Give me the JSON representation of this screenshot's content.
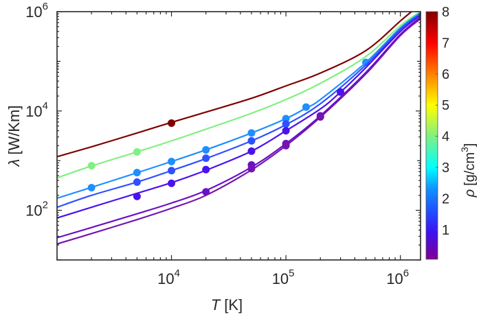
{
  "chart_data": {
    "type": "line",
    "title": "",
    "xlabel": "T [K]",
    "xlabel_var": "T",
    "xlabel_unit": "[K]",
    "ylabel": "λ [W/Km]",
    "ylabel_var": "λ",
    "ylabel_unit": "[W/Km]",
    "xscale": "log",
    "yscale": "log",
    "xlim": [
      1000,
      1500000
    ],
    "ylim": [
      10,
      1000000
    ],
    "x_ticks": [
      {
        "value": 10000,
        "base": "10",
        "exp": "4"
      },
      {
        "value": 100000,
        "base": "10",
        "exp": "5"
      },
      {
        "value": 1000000,
        "base": "10",
        "exp": "6"
      }
    ],
    "y_ticks": [
      {
        "value": 100,
        "base": "10",
        "exp": "2"
      },
      {
        "value": 10000,
        "base": "10",
        "exp": "4"
      },
      {
        "value": 1000000,
        "base": "10",
        "exp": "6"
      }
    ],
    "grid": false,
    "legend": "none",
    "colorbar": {
      "label_var": "ρ",
      "label_unit": "[g/cm",
      "label_sup": "3",
      "label_close": "]",
      "range": [
        0.05,
        8
      ],
      "ticks": [
        "1",
        "2",
        "3",
        "4",
        "5",
        "6",
        "7",
        "8"
      ],
      "tick_values": [
        1,
        2,
        3,
        4,
        5,
        6,
        7,
        8
      ],
      "colormap_stops": [
        {
          "v": 0.05,
          "color": "#800090"
        },
        {
          "v": 0.9,
          "color": "#4010f0"
        },
        {
          "v": 1.6,
          "color": "#2050ff"
        },
        {
          "v": 2.3,
          "color": "#1090ff"
        },
        {
          "v": 3.0,
          "color": "#00ffff"
        },
        {
          "v": 4.0,
          "color": "#80f080"
        },
        {
          "v": 5.0,
          "color": "#ffff00"
        },
        {
          "v": 6.0,
          "color": "#ff8000"
        },
        {
          "v": 7.0,
          "color": "#ff0000"
        },
        {
          "v": 8.0,
          "color": "#800000"
        }
      ]
    },
    "series": [
      {
        "name": "rho-8",
        "density": 8,
        "color": "#7f0000",
        "curve": [
          [
            1000,
            1200
          ],
          [
            2000,
            1900
          ],
          [
            5000,
            3600
          ],
          [
            10000,
            5900
          ],
          [
            20000,
            9500
          ],
          [
            50000,
            18000
          ],
          [
            100000,
            32000
          ],
          [
            200000,
            58000
          ],
          [
            500000,
            165000
          ],
          [
            1000000,
            650000
          ],
          [
            1250000,
            1000000
          ]
        ],
        "points": [
          [
            10000,
            5700
          ]
        ]
      },
      {
        "name": "rho-3.9",
        "density": 3.9,
        "color": "#80f080",
        "curve": [
          [
            1000,
            450
          ],
          [
            2000,
            780
          ],
          [
            5000,
            1500
          ],
          [
            10000,
            2500
          ],
          [
            20000,
            4300
          ],
          [
            50000,
            9000
          ],
          [
            100000,
            17000
          ],
          [
            200000,
            36000
          ],
          [
            500000,
            125000
          ],
          [
            1000000,
            520000
          ],
          [
            1500000,
            1000000
          ]
        ],
        "points": [
          [
            2000,
            790
          ],
          [
            5000,
            1500
          ]
        ]
      },
      {
        "name": "rho-2.3",
        "density": 2.3,
        "color": "#1e8fff",
        "curve": [
          [
            1000,
            175
          ],
          [
            2000,
            290
          ],
          [
            5000,
            570
          ],
          [
            10000,
            960
          ],
          [
            20000,
            1650
          ],
          [
            50000,
            3600
          ],
          [
            100000,
            7000
          ],
          [
            150000,
            11500
          ],
          [
            200000,
            17000
          ],
          [
            500000,
            95000
          ],
          [
            1000000,
            470000
          ],
          [
            1500000,
            950000
          ]
        ],
        "points": [
          [
            2000,
            285
          ],
          [
            5000,
            575
          ],
          [
            10000,
            960
          ],
          [
            20000,
            1650
          ],
          [
            50000,
            3600
          ],
          [
            100000,
            7000
          ],
          [
            150000,
            12000
          ],
          [
            500000,
            95000
          ]
        ]
      },
      {
        "name": "rho-1.5",
        "density": 1.5,
        "color": "#2f50ff",
        "curve": [
          [
            1000,
            115
          ],
          [
            2000,
            200
          ],
          [
            5000,
            370
          ],
          [
            10000,
            630
          ],
          [
            20000,
            1100
          ],
          [
            50000,
            2500
          ],
          [
            100000,
            5300
          ],
          [
            200000,
            14000
          ],
          [
            500000,
            85000
          ],
          [
            1000000,
            440000
          ],
          [
            1500000,
            900000
          ]
        ],
        "points": [
          [
            5000,
            370
          ],
          [
            10000,
            630
          ],
          [
            20000,
            1120
          ],
          [
            50000,
            2500
          ],
          [
            100000,
            5500
          ]
        ]
      },
      {
        "name": "rho-0.9",
        "density": 0.9,
        "color": "#4a12ee",
        "curve": [
          [
            1000,
            70
          ],
          [
            2000,
            115
          ],
          [
            5000,
            220
          ],
          [
            10000,
            360
          ],
          [
            20000,
            640
          ],
          [
            50000,
            1550
          ],
          [
            100000,
            4000
          ],
          [
            200000,
            11000
          ],
          [
            300000,
            24000
          ],
          [
            500000,
            75000
          ],
          [
            1000000,
            400000
          ],
          [
            1500000,
            850000
          ]
        ],
        "points": [
          [
            5000,
            190
          ],
          [
            10000,
            350
          ],
          [
            20000,
            660
          ],
          [
            50000,
            1550
          ],
          [
            100000,
            4000
          ],
          [
            300000,
            24000
          ]
        ]
      },
      {
        "name": "rho-0.4",
        "density": 0.4,
        "color": "#6a10c8",
        "curve": [
          [
            1000,
            28
          ],
          [
            2000,
            45
          ],
          [
            5000,
            85
          ],
          [
            10000,
            140
          ],
          [
            20000,
            250
          ],
          [
            50000,
            740
          ],
          [
            100000,
            2200
          ],
          [
            200000,
            8000
          ],
          [
            500000,
            60000
          ],
          [
            1000000,
            350000
          ],
          [
            1500000,
            780000
          ]
        ],
        "points": [
          [
            20000,
            235
          ],
          [
            50000,
            820
          ],
          [
            100000,
            2200
          ],
          [
            200000,
            8000
          ]
        ]
      },
      {
        "name": "rho-0.25",
        "density": 0.25,
        "color": "#7414b0",
        "curve": [
          [
            1000,
            21
          ],
          [
            2000,
            34
          ],
          [
            5000,
            65
          ],
          [
            10000,
            110
          ],
          [
            20000,
            200
          ],
          [
            50000,
            650
          ],
          [
            100000,
            2000
          ],
          [
            200000,
            7500
          ],
          [
            500000,
            56000
          ],
          [
            1000000,
            330000
          ],
          [
            1500000,
            720000
          ]
        ],
        "points": [
          [
            50000,
            690
          ],
          [
            100000,
            2000
          ],
          [
            200000,
            7600
          ]
        ]
      }
    ]
  }
}
